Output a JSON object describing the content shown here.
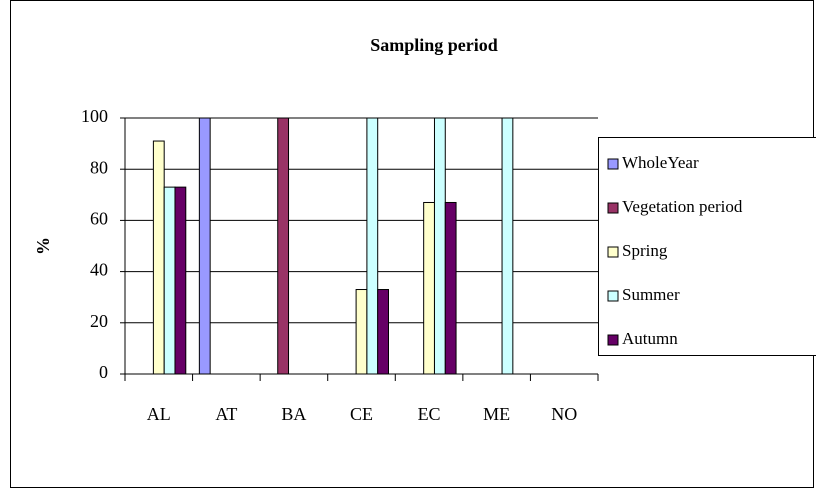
{
  "chart_data": {
    "type": "bar",
    "title": "Sampling period",
    "y_label": "%",
    "categories": [
      "AL",
      "AT",
      "BA",
      "CE",
      "EC",
      "ME",
      "NO"
    ],
    "series": [
      {
        "name": "WholeYear",
        "color": "#9999ff",
        "values": [
          0,
          100,
          0,
          0,
          0,
          0,
          0
        ]
      },
      {
        "name": "Vegetation period",
        "color": "#993366",
        "values": [
          0,
          0,
          100,
          0,
          0,
          0,
          0
        ]
      },
      {
        "name": "Spring",
        "color": "#ffffcc",
        "values": [
          91,
          0,
          0,
          33,
          67,
          0,
          0
        ]
      },
      {
        "name": "Summer",
        "color": "#ccffff",
        "values": [
          73,
          0,
          0,
          100,
          100,
          100,
          0
        ]
      },
      {
        "name": "Autumn",
        "color": "#660066",
        "values": [
          73,
          0,
          0,
          33,
          67,
          0,
          0
        ]
      }
    ],
    "ylim": [
      0,
      100
    ],
    "yticks": [
      0,
      20,
      40,
      60,
      80,
      100
    ],
    "grid": true,
    "legend": "right"
  }
}
